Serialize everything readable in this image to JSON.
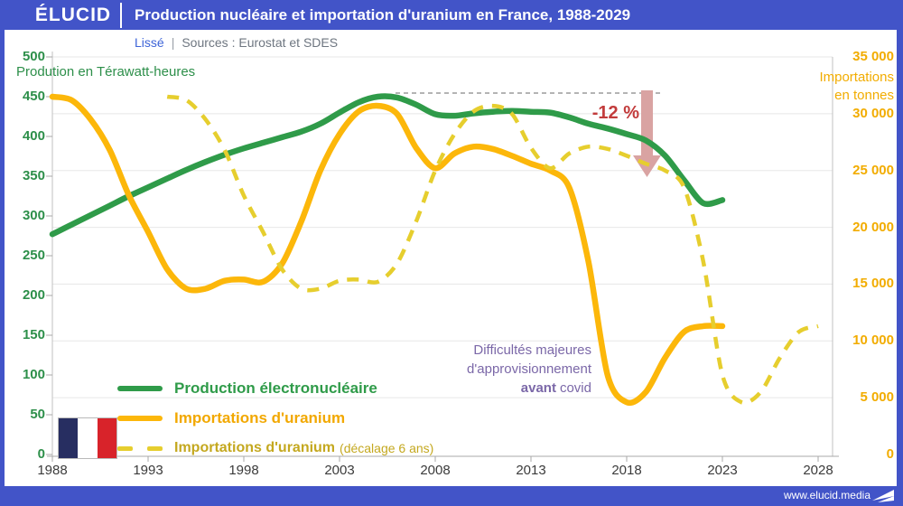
{
  "header": {
    "logo": "ÉLUCID",
    "title": "Production nucléaire et importation d'uranium en France, 1988-2029"
  },
  "subtitle": {
    "smoothing": "Lissé",
    "separator": "|",
    "sources": "Sources : Eurostat et SDES"
  },
  "footer": {
    "url": "www.elucid.media"
  },
  "colors": {
    "brand_blue": "#4254c8",
    "production_green": "#2f9b49",
    "imports_yellow": "#fcb70a",
    "imports_shifted_yellow": "#e6ce2e",
    "annotation_red": "#c23b3b",
    "arrow_pink": "#d9a3a2",
    "covid_purple": "#7b68a8",
    "grid_gray": "#e7e7e7"
  },
  "chart_data": {
    "type": "line",
    "title": "Production nucléaire et importation d'uranium en France, 1988-2029",
    "subtitle": "Lissé",
    "grid": "horizontal",
    "x_axis": {
      "range": [
        1988,
        2029
      ],
      "tick_years": [
        1988,
        1993,
        1998,
        2003,
        2008,
        2013,
        2018,
        2023,
        2028
      ],
      "tick_labels": [
        "1988",
        "1993",
        "1998",
        "2003",
        "2008",
        "2013",
        "2018",
        "2023",
        "2028"
      ]
    },
    "left_axis": {
      "label": "Prodution en Térawatt-heures",
      "range": [
        0,
        500
      ],
      "tick_values": [
        500,
        450,
        400,
        350,
        300,
        250,
        200,
        150,
        100,
        50,
        0
      ],
      "tick_labels": [
        "500",
        "450",
        "400",
        "350",
        "300",
        "250",
        "200",
        "150",
        "100",
        "50",
        "0"
      ]
    },
    "right_axis": {
      "label_lines": [
        "Importations",
        "en tonnes"
      ],
      "range": [
        0,
        35000
      ],
      "tick_values": [
        35000,
        30000,
        25000,
        20000,
        15000,
        10000,
        5000,
        0
      ],
      "tick_labels": [
        "35 000",
        "30 000",
        "25 000",
        "20 000",
        "15 000",
        "10 000",
        "5 000",
        "0"
      ],
      "grid_values": [
        35000,
        30000,
        25000,
        20000,
        15000,
        10000,
        5000
      ]
    },
    "series": [
      {
        "name": "Production électronucléaire",
        "axis": "left",
        "unit": "TWh",
        "color": "#2f9b49",
        "style": "solid",
        "width": 6.5,
        "start_year": 1988,
        "end_year": 2023,
        "values": [
          277,
          289,
          301,
          313,
          325,
          336,
          347,
          358,
          368,
          377,
          385,
          392,
          399,
          406,
          416,
          430,
          443,
          450,
          449,
          440,
          428,
          426,
          429,
          431,
          432,
          431,
          430,
          424,
          416,
          410,
          403,
          395,
          376,
          345,
          316,
          320
        ]
      },
      {
        "name": "Importations d'uranium",
        "axis": "right",
        "unit": "tonnes",
        "color": "#fcb70a",
        "style": "solid",
        "width": 6.5,
        "start_year": 1988,
        "end_year": 2023,
        "values": [
          31500,
          31200,
          29500,
          26800,
          22800,
          19600,
          16300,
          14600,
          14600,
          15300,
          15400,
          15200,
          16800,
          20500,
          25000,
          28200,
          30200,
          30700,
          30000,
          27000,
          25200,
          26500,
          27100,
          26900,
          26300,
          25600,
          25000,
          23500,
          17000,
          7000,
          4600,
          5500,
          8500,
          10800,
          11300,
          11300
        ]
      },
      {
        "name": "Importations d'uranium (décalage 6 ans)",
        "axis": "right",
        "unit": "tonnes",
        "color": "#e6ce2e",
        "style": "dashed",
        "width": 4.5,
        "start_year": 1994,
        "end_year": 2028,
        "values": [
          31500,
          31200,
          29500,
          26800,
          22800,
          19600,
          16300,
          14600,
          14600,
          15300,
          15400,
          15200,
          16800,
          20500,
          25000,
          28200,
          30200,
          30700,
          30000,
          27000,
          25200,
          26500,
          27100,
          26900,
          26300,
          25600,
          25000,
          23500,
          17000,
          7000,
          4600,
          5500,
          8500,
          10800,
          11300
        ]
      }
    ],
    "legend": [
      {
        "label": "Production électronucléaire",
        "suffix": ""
      },
      {
        "label": "Importations d'uranium",
        "suffix": ""
      },
      {
        "label": "Importations d'uranium",
        "suffix": "(décalage 6 ans)"
      }
    ],
    "annotations": {
      "drop": {
        "label": "-12 %",
        "baseline_value_left_axis": 450
      },
      "covid": {
        "line1": "Difficultés majeures",
        "line2": "d'approvisionnement",
        "line3_bold": "avant",
        "line3_rest": "covid"
      }
    }
  }
}
